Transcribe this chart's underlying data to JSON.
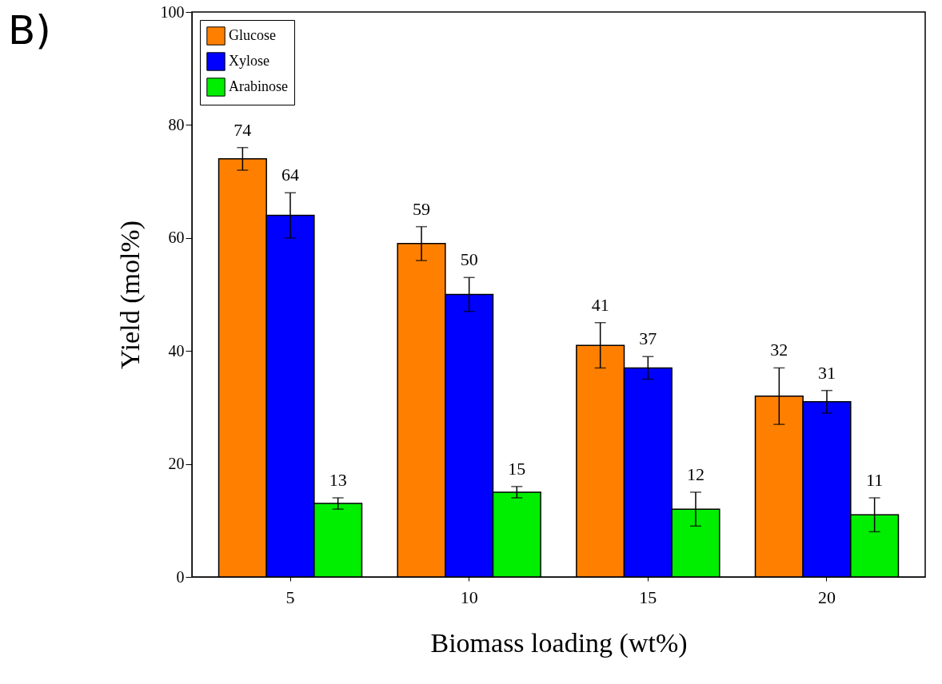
{
  "chart_data": {
    "type": "bar",
    "title": "B)",
    "xlabel": "Biomass loading (wt%)",
    "ylabel": "Yield (mol%)",
    "categories": [
      "5",
      "10",
      "15",
      "20"
    ],
    "series": [
      {
        "name": "Glucose",
        "color": "#ff8000",
        "values": [
          74,
          59,
          41,
          32
        ],
        "errors": [
          2,
          3,
          4,
          5
        ]
      },
      {
        "name": "Xylose",
        "color": "#0000ff",
        "values": [
          64,
          50,
          37,
          31
        ],
        "errors": [
          4,
          3,
          2,
          2
        ]
      },
      {
        "name": "Arabinose",
        "color": "#00ee00",
        "values": [
          13,
          15,
          12,
          11
        ],
        "errors": [
          1,
          1,
          3,
          3
        ]
      }
    ],
    "ylim": [
      0,
      100
    ],
    "yticks": [
      0,
      20,
      40,
      60,
      80,
      100
    ],
    "data_labels": true,
    "legend": "top left",
    "grid": false
  }
}
